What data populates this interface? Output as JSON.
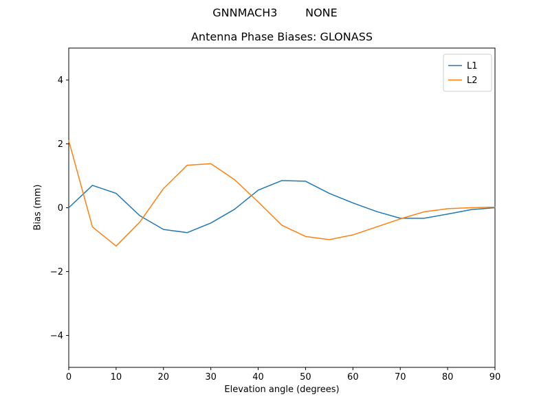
{
  "suptitle": "GNNMACH3        NONE",
  "chart_data": {
    "type": "line",
    "title": "Antenna Phase Biases: GLONASS",
    "xlabel": "Elevation angle (degrees)",
    "ylabel": "Bias (mm)",
    "xlim": [
      0,
      90
    ],
    "ylim": [
      -5,
      5
    ],
    "xticks": [
      0,
      10,
      20,
      30,
      40,
      50,
      60,
      70,
      80,
      90
    ],
    "yticks": [
      -4,
      -2,
      0,
      2,
      4
    ],
    "grid": false,
    "legend_position": "upper right",
    "frame_color": "#000000",
    "legend_edge_color": "#cccccc",
    "x": [
      0,
      5,
      10,
      15,
      20,
      25,
      30,
      35,
      40,
      45,
      50,
      55,
      60,
      65,
      70,
      75,
      80,
      85,
      90
    ],
    "series": [
      {
        "name": "L1",
        "color": "#1f77b4",
        "values": [
          0.0,
          0.7,
          0.45,
          -0.25,
          -0.68,
          -0.78,
          -0.48,
          -0.05,
          0.55,
          0.85,
          0.83,
          0.45,
          0.15,
          -0.12,
          -0.33,
          -0.33,
          -0.2,
          -0.06,
          0.0
        ]
      },
      {
        "name": "L2",
        "color": "#ff7f0e",
        "values": [
          2.1,
          -0.6,
          -1.2,
          -0.45,
          0.6,
          1.33,
          1.38,
          0.88,
          0.18,
          -0.55,
          -0.9,
          -1.0,
          -0.85,
          -0.6,
          -0.35,
          -0.13,
          -0.03,
          0.0,
          0.02
        ]
      }
    ]
  }
}
